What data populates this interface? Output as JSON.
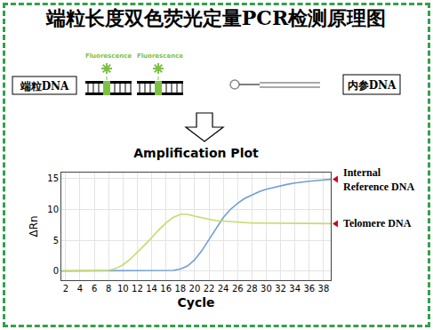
{
  "header": {
    "title": "端粒长度双色荧光定量PCR检测原理图"
  },
  "diagram": {
    "left_label": "端粒DNA",
    "right_label": "内参DNA",
    "fluorescence_labels": [
      "Fluorescence",
      "Fluorescence"
    ]
  },
  "chart_data": {
    "type": "line",
    "title": "Amplification Plot",
    "x_label": "Cycle",
    "y_label": "ΔRn",
    "x": [
      1,
      2,
      3,
      4,
      5,
      6,
      7,
      8,
      9,
      10,
      11,
      12,
      13,
      14,
      15,
      16,
      17,
      18,
      19,
      20,
      21,
      22,
      23,
      24,
      25,
      26,
      27,
      28,
      29,
      30,
      31,
      32,
      33,
      34,
      35,
      36,
      37,
      38,
      39
    ],
    "series": [
      {
        "name": "Internal Reference DNA",
        "color": "#6f9fd6",
        "values": [
          0,
          0,
          0,
          0,
          0,
          0,
          0,
          0,
          0,
          0,
          0,
          0,
          0,
          0,
          0,
          0,
          0.1,
          0.3,
          0.8,
          1.8,
          3.3,
          5.1,
          7.0,
          8.7,
          10.0,
          11.0,
          11.8,
          12.4,
          12.9,
          13.3,
          13.6,
          13.9,
          14.1,
          14.3,
          14.5,
          14.6,
          14.7,
          14.8,
          14.9
        ]
      },
      {
        "name": "Telomere DNA",
        "color": "#c6da6a",
        "values": [
          0,
          0,
          0,
          0,
          0,
          0,
          0,
          0.1,
          0.4,
          1.0,
          1.9,
          3.0,
          4.2,
          5.4,
          6.7,
          7.8,
          8.7,
          9.2,
          9.2,
          8.9,
          8.6,
          8.4,
          8.2,
          8.1,
          8.0,
          7.9,
          7.9,
          7.8,
          7.8,
          7.8,
          7.8,
          7.8,
          7.7,
          7.7,
          7.7,
          7.7,
          7.7,
          7.7,
          7.7
        ]
      }
    ],
    "xlim": [
      1.4,
      39
    ],
    "ylim": [
      -1.5,
      16
    ],
    "xticks": [
      2,
      4,
      6,
      8,
      10,
      12,
      14,
      16,
      18,
      20,
      22,
      24,
      26,
      28,
      30,
      32,
      34,
      36,
      38
    ],
    "yticks": [
      0,
      5,
      10,
      15
    ],
    "grid": true
  }
}
